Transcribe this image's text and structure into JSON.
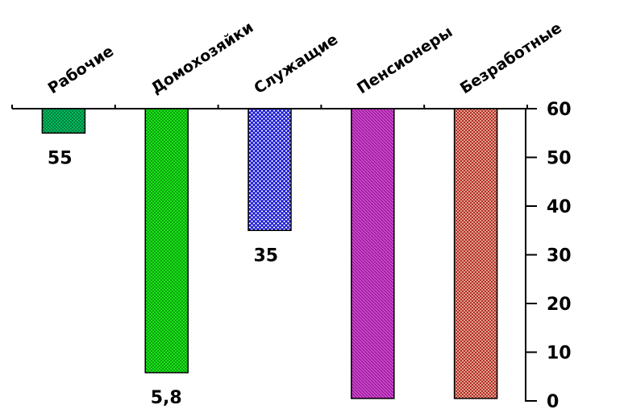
{
  "chart_data": {
    "type": "bar",
    "orientation": "vertical-hanging",
    "categories": [
      "Рабочие",
      "Домохозяйки",
      "Служащие",
      "Пенсионеры",
      "Безработные"
    ],
    "values": [
      55,
      5.8,
      35,
      0.5,
      0.5
    ],
    "value_labels": [
      "55",
      "5,8",
      "35",
      "",
      ""
    ],
    "ylim": [
      0,
      60
    ],
    "yticks": [
      "0",
      "10",
      "20",
      "30",
      "40",
      "50",
      "60"
    ],
    "y_axis_position": "right",
    "category_axis_position": "top",
    "bars_hang_from": "top",
    "grid": false,
    "legend": "none",
    "colors": [
      "#00c864",
      "#00e000",
      "#2020e0",
      "#c020c0",
      "#d04040"
    ],
    "title": "",
    "xlabel": "",
    "ylabel": ""
  }
}
